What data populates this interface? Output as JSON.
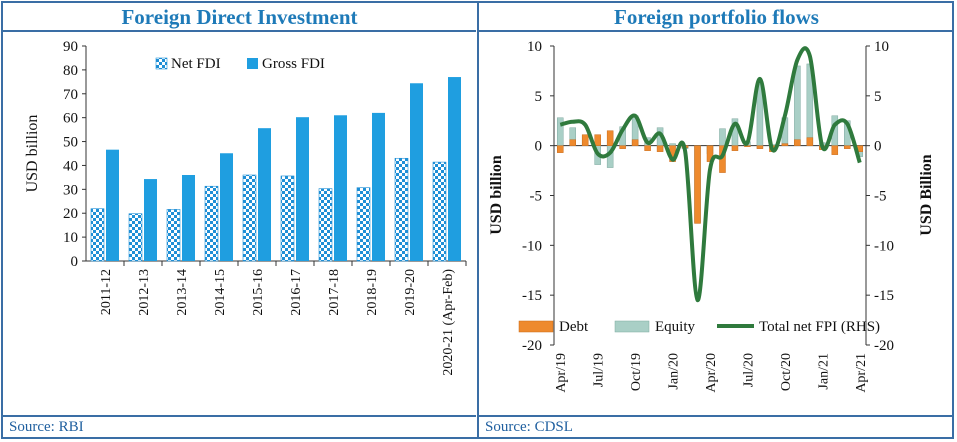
{
  "chart_data": [
    {
      "type": "bar",
      "title": "Foreign Direct Investment",
      "source": "Source: RBI",
      "ylabel": "USD billion",
      "ylim": [
        0,
        90
      ],
      "yticks": [
        0,
        10,
        20,
        30,
        40,
        50,
        60,
        70,
        80,
        90
      ],
      "categories": [
        "2011-12",
        "2012-13",
        "2013-14",
        "2014-15",
        "2015-16",
        "2016-17",
        "2017-18",
        "2018-19",
        "2019-20",
        "2020-21 (Apr-Feb)"
      ],
      "series": [
        {
          "name": "Net FDI",
          "color": "#1f8fd6",
          "pattern": "checker",
          "values": [
            21.9,
            19.8,
            21.6,
            31.3,
            36.0,
            35.6,
            30.3,
            30.7,
            43.0,
            41.4
          ]
        },
        {
          "name": "Gross FDI",
          "color": "#1f9ee0",
          "values": [
            46.6,
            34.3,
            36.0,
            45.1,
            55.6,
            60.2,
            61.0,
            62.0,
            74.4,
            77.0
          ]
        }
      ],
      "legend": "top-center",
      "grid": false
    },
    {
      "type": "bar+line",
      "title": "Foreign portfolio flows",
      "source": "Source: CDSL",
      "ylabel_left": "USD billion",
      "ylabel_right": "USD Billion",
      "ylim": [
        -20,
        10
      ],
      "yticks": [
        10,
        5,
        0,
        -5,
        -10,
        -15,
        -20
      ],
      "x_tick_labels": [
        "Apr/19",
        "Jul/19",
        "Oct/19",
        "Jan/20",
        "Apr/20",
        "Jul/20",
        "Oct/20",
        "Jan/21",
        "Apr/21"
      ],
      "x": [
        "Apr/19",
        "May/19",
        "Jun/19",
        "Jul/19",
        "Aug/19",
        "Sep/19",
        "Oct/19",
        "Nov/19",
        "Dec/19",
        "Jan/20",
        "Feb/20",
        "Mar/20",
        "Apr/20",
        "May/20",
        "Jun/20",
        "Jul/20",
        "Aug/20",
        "Sep/20",
        "Oct/20",
        "Nov/20",
        "Dec/20",
        "Jan/21",
        "Feb/21",
        "Mar/21",
        "Apr/21"
      ],
      "series": [
        {
          "name": "Debt",
          "type": "bar",
          "color": "#ee8a2e",
          "values": [
            -0.7,
            0.6,
            1.1,
            1.1,
            1.5,
            -0.3,
            0.6,
            -0.5,
            -0.6,
            -1.6,
            -0.2,
            -7.8,
            -1.6,
            -2.7,
            -0.5,
            -0.1,
            -0.3,
            -0.6,
            0.2,
            0.6,
            0.8,
            -0.4,
            -0.9,
            -0.3,
            -0.6
          ]
        },
        {
          "name": "Equity",
          "type": "bar",
          "color": "#a9cfc6",
          "values": [
            2.8,
            1.8,
            1.0,
            -1.9,
            -2.2,
            1.9,
            3.0,
            0.8,
            1.8,
            0.2,
            -0.3,
            -7.7,
            -0.8,
            1.7,
            2.7,
            0.4,
            6.2,
            0.1,
            2.8,
            8.0,
            8.2,
            0.3,
            3.0,
            2.5,
            -1.1
          ]
        },
        {
          "name": "Total net FPI (RHS)",
          "type": "line",
          "color": "#2f7a3d",
          "values": [
            2.1,
            2.4,
            2.1,
            -0.8,
            -0.7,
            1.6,
            3.0,
            0.3,
            1.2,
            -1.4,
            -0.5,
            -15.5,
            -2.4,
            -1.0,
            2.2,
            0.3,
            6.7,
            -0.4,
            3.0,
            8.6,
            9.0,
            -0.1,
            2.1,
            2.2,
            -1.7
          ]
        }
      ],
      "legend": "bottom",
      "grid": false
    }
  ]
}
